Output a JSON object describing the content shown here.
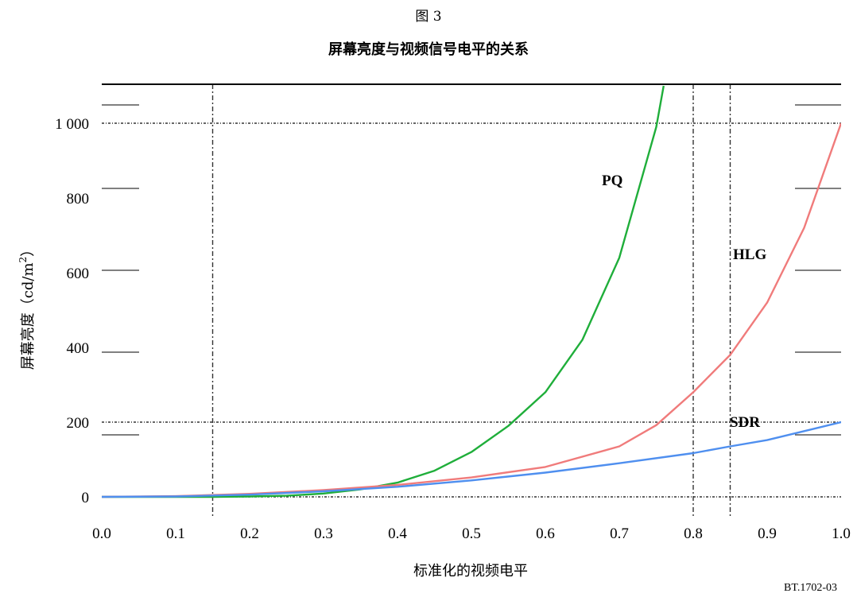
{
  "figure": {
    "number": "图 3",
    "title": "屏幕亮度与视频信号电平的关系",
    "code": "BT.1702-03"
  },
  "chart_data": {
    "type": "line",
    "title": "屏幕亮度与视频信号电平的关系",
    "xlabel": "标准化的视频电平",
    "ylabel_main": "屏幕亮度（cd/m",
    "ylabel_sup": "2",
    "ylabel_end": "）",
    "xlim": [
      0,
      1
    ],
    "ylim": [
      0,
      1000
    ],
    "x_ticks": [
      "0.0",
      "0.1",
      "0.2",
      "0.3",
      "0.4",
      "0.5",
      "0.6",
      "0.7",
      "0.8",
      "0.9",
      "1.0"
    ],
    "y_ticks": [
      "0",
      "200",
      "400",
      "600",
      "800",
      "1 000"
    ],
    "y_tick_values": [
      0,
      200,
      400,
      600,
      800,
      1000
    ],
    "reference_lines": {
      "vertical": [
        0.15,
        0.8,
        0.85
      ],
      "horizontal": [
        200,
        1000
      ]
    },
    "series": [
      {
        "name": "PQ",
        "color": "#1fae3a",
        "x": [
          0.0,
          0.05,
          0.1,
          0.15,
          0.2,
          0.25,
          0.3,
          0.35,
          0.4,
          0.45,
          0.5,
          0.55,
          0.6,
          0.65,
          0.7,
          0.75,
          0.76
        ],
        "y": [
          0,
          0,
          0,
          0,
          1,
          3,
          9,
          20,
          38,
          70,
          120,
          190,
          280,
          420,
          640,
          990,
          1100
        ]
      },
      {
        "name": "HLG",
        "color": "#f07b7b",
        "x": [
          0.0,
          0.1,
          0.2,
          0.3,
          0.4,
          0.5,
          0.6,
          0.7,
          0.75,
          0.8,
          0.85,
          0.9,
          0.95,
          1.0
        ],
        "y": [
          0,
          2,
          8,
          18,
          32,
          52,
          80,
          135,
          192,
          280,
          380,
          520,
          720,
          1000
        ]
      },
      {
        "name": "SDR",
        "color": "#4f8fef",
        "x": [
          0.0,
          0.1,
          0.2,
          0.3,
          0.4,
          0.5,
          0.6,
          0.7,
          0.8,
          0.85,
          0.9,
          1.0
        ],
        "y": [
          0,
          1,
          6,
          15,
          27,
          44,
          65,
          90,
          117,
          135,
          152,
          200
        ]
      }
    ]
  }
}
